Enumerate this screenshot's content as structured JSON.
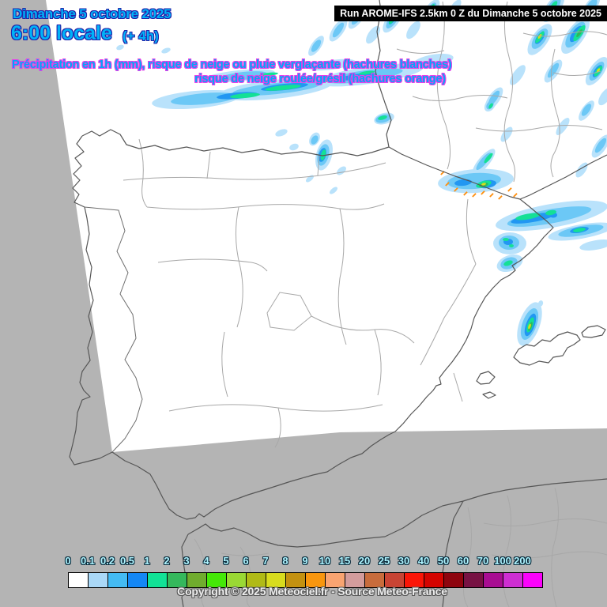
{
  "header": {
    "date": "Dimanche 5 octobre 2025",
    "time": "6:00 locale",
    "offset": "(+ 4h)",
    "run": "Run AROME-IFS 2.5km 0 Z du Dimanche 5 octobre 2025"
  },
  "description": {
    "line1": "Précipitation en 1h (mm), risque de neige ou pluie verglaçante (hachures blanches)",
    "line2": "risque de neige roulée/grésil (hachures orange)"
  },
  "legend": {
    "unit": "mm",
    "stops": [
      {
        "label": "0",
        "color": "#ffffff"
      },
      {
        "label": "0.1",
        "color": "#aad8f7"
      },
      {
        "label": "0.2",
        "color": "#44bbf3"
      },
      {
        "label": "0.5",
        "color": "#1487f5"
      },
      {
        "label": "1",
        "color": "#12e296"
      },
      {
        "label": "2",
        "color": "#35b85c"
      },
      {
        "label": "3",
        "color": "#70ac2e"
      },
      {
        "label": "4",
        "color": "#45e808"
      },
      {
        "label": "5",
        "color": "#9ad834"
      },
      {
        "label": "6",
        "color": "#b0ba16"
      },
      {
        "label": "7",
        "color": "#d8dc1e"
      },
      {
        "label": "8",
        "color": "#c39110"
      },
      {
        "label": "9",
        "color": "#f8960e"
      },
      {
        "label": "10",
        "color": "#f9a471"
      },
      {
        "label": "15",
        "color": "#d39c9c"
      },
      {
        "label": "20",
        "color": "#c86c3c"
      },
      {
        "label": "25",
        "color": "#c84434"
      },
      {
        "label": "30",
        "color": "#fb1507"
      },
      {
        "label": "40",
        "color": "#d40400"
      },
      {
        "label": "50",
        "color": "#8e040e"
      },
      {
        "label": "60",
        "color": "#771243"
      },
      {
        "label": "70",
        "color": "#a80d92"
      },
      {
        "label": "100",
        "color": "#ce2ed2"
      },
      {
        "label": "200",
        "color": "#fb02fb"
      }
    ]
  },
  "footer": {
    "copyright": "Copyright © 2025 Meteociel.fr - Source Meteo-France"
  },
  "map": {
    "background_color": "#b4b4b4",
    "domain_color": "#ffffff",
    "coastline_color": "#565656",
    "admin_border_color": "#a8a8a8",
    "precipitation_zones": [
      "southwest-france-band",
      "top-edge-shower-cells",
      "rhone-valley-streaks",
      "basque-coast-cells",
      "pyrenees-snow-pellet-patch",
      "catalonia-coast-band",
      "mallorca-plume"
    ],
    "precip_colors": {
      "light": "#b9e2fb",
      "moderate": "#6cc8f6",
      "strong": "#2297f2",
      "green_core": "#14e096",
      "dark_green": "#2eb85c",
      "yellow_core": "#d6de1c",
      "graupel_hatch_orange": "#ff8f0e"
    }
  }
}
